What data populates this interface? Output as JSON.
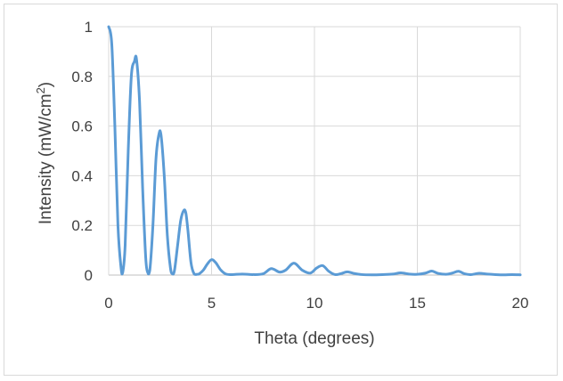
{
  "chart_data": {
    "type": "line",
    "title": "",
    "xlabel": "Theta (degrees)",
    "ylabel_main": "Intensity (mW/cm",
    "ylabel_sup": "2",
    "ylabel_close": ")",
    "xlim": [
      0,
      20
    ],
    "ylim": [
      0,
      1
    ],
    "xticks": [
      0,
      5,
      10,
      15,
      20
    ],
    "xtick_labels": [
      "0",
      "5",
      "10",
      "15",
      "20"
    ],
    "yticks": [
      0,
      0.2,
      0.4,
      0.6,
      0.8,
      1
    ],
    "ytick_labels": [
      "0",
      "0.2",
      "0.4",
      "0.6",
      "0.8",
      "1"
    ],
    "grid": true,
    "legend": "none",
    "series": [
      {
        "color": "#5b9bd5",
        "x": [
          0,
          0.15,
          0.3,
          0.45,
          0.6,
          0.68,
          0.8,
          0.95,
          1.1,
          1.25,
          1.35,
          1.5,
          1.65,
          1.8,
          1.9,
          2.0,
          2.15,
          2.3,
          2.45,
          2.55,
          2.7,
          2.85,
          3.0,
          3.1,
          3.2,
          3.35,
          3.5,
          3.65,
          3.75,
          3.85,
          4.0,
          4.15,
          4.3,
          4.4,
          4.6,
          4.8,
          5.0,
          5.2,
          5.45,
          5.7,
          6.0,
          6.5,
          7.0,
          7.5,
          7.9,
          8.3,
          8.6,
          9.0,
          9.4,
          9.8,
          10.1,
          10.4,
          10.7,
          11.0,
          11.3,
          11.6,
          11.9,
          12.3,
          12.8,
          13.3,
          13.8,
          14.2,
          14.6,
          15.0,
          15.4,
          15.7,
          16.0,
          16.4,
          16.7,
          17.0,
          17.3,
          17.6,
          18.0,
          18.4,
          18.8,
          19.2,
          19.6,
          20.0
        ],
        "y": [
          1.0,
          0.93,
          0.6,
          0.2,
          0.03,
          0.01,
          0.12,
          0.5,
          0.8,
          0.86,
          0.87,
          0.7,
          0.35,
          0.07,
          0.01,
          0.02,
          0.2,
          0.47,
          0.57,
          0.56,
          0.4,
          0.16,
          0.03,
          0.005,
          0.02,
          0.12,
          0.22,
          0.26,
          0.25,
          0.18,
          0.05,
          0.005,
          0.003,
          0.005,
          0.02,
          0.045,
          0.062,
          0.05,
          0.02,
          0.004,
          0.002,
          0.004,
          0.002,
          0.005,
          0.026,
          0.012,
          0.02,
          0.048,
          0.02,
          0.008,
          0.028,
          0.038,
          0.015,
          0.002,
          0.006,
          0.013,
          0.007,
          0.002,
          0.001,
          0.002,
          0.004,
          0.009,
          0.004,
          0.003,
          0.008,
          0.016,
          0.007,
          0.003,
          0.008,
          0.015,
          0.005,
          0.002,
          0.007,
          0.004,
          0.002,
          0.001,
          0.002,
          0.001
        ]
      }
    ]
  }
}
